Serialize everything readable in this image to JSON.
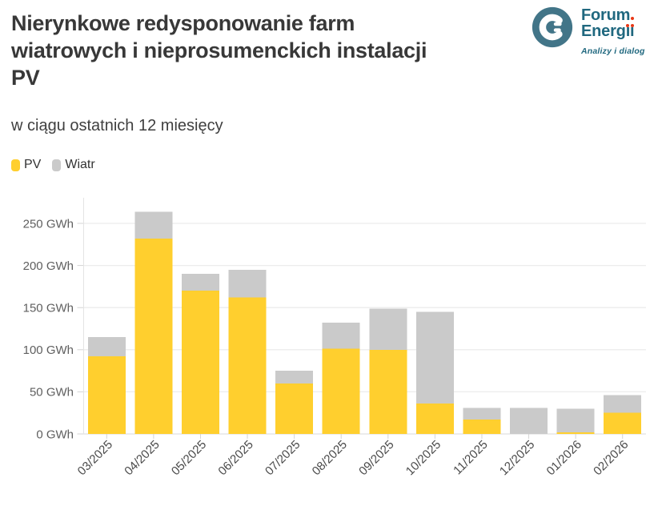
{
  "header": {
    "title": "Nierynkowe redysponowanie farm\nwiatrowych i nieprosumenckich instalacji\nPV",
    "subtitle": "w ciągu ostatnich 12 miesięcy"
  },
  "logo": {
    "name_line1": "Forum",
    "name_line2": "Energii",
    "tagline": "Analizy i dialog",
    "circle_color": "#427588",
    "text_color": "#20687f",
    "dot_color": "#e83715"
  },
  "legend": {
    "items": [
      {
        "label": "PV",
        "color": "#ffcf2e"
      },
      {
        "label": "Wiatr",
        "color": "#cacaca"
      }
    ]
  },
  "chart_data": {
    "type": "bar",
    "stacked": true,
    "title": "Nierynkowe redysponowanie farm wiatrowych i nieprosumenckich instalacji PV",
    "subtitle": "w ciągu ostatnich 12 miesięcy",
    "unit": "GWh",
    "categories": [
      "03/2025",
      "04/2025",
      "05/2025",
      "06/2025",
      "07/2025",
      "08/2025",
      "09/2025",
      "10/2025",
      "11/2025",
      "12/2025",
      "01/2026",
      "02/2026"
    ],
    "series": [
      {
        "name": "PV",
        "color": "#ffcf2e",
        "values": [
          92,
          232,
          170,
          162,
          60,
          101,
          100,
          36,
          17,
          0,
          2,
          25
        ]
      },
      {
        "name": "Wiatr",
        "color": "#cacaca",
        "values": [
          23,
          32,
          20,
          33,
          15,
          31,
          49,
          109,
          14,
          31,
          28,
          21
        ]
      }
    ],
    "totals": [
      115,
      264,
      190,
      195,
      75,
      132,
      149,
      145,
      31,
      31,
      30,
      46
    ],
    "xlabel": "",
    "ylabel": "GWh",
    "ylim": [
      0,
      280
    ],
    "yticks": [
      0,
      50,
      100,
      150,
      200,
      250
    ],
    "ytick_suffix": " GWh",
    "grid": true,
    "legend_position": "top-left",
    "x_label_rotation": -45
  }
}
